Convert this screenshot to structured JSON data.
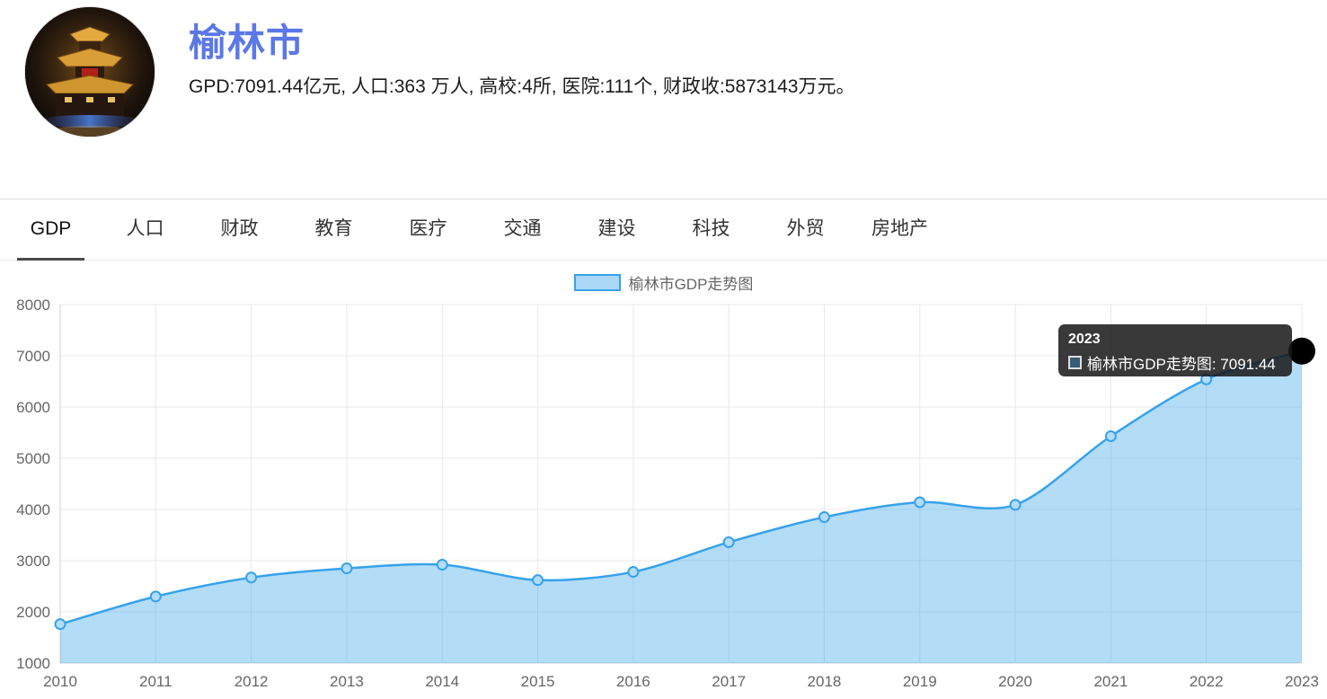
{
  "header": {
    "city_name": "榆林市",
    "summary": "GPD:7091.44亿元, 人口:363 万人, 高校:4所, 医院:111个, 财政收:5873143万元。",
    "avatar_icon": "city-gate-tower-night-photo"
  },
  "tabs": [
    {
      "label": "GDP",
      "active": true
    },
    {
      "label": "人口",
      "active": false
    },
    {
      "label": "财政",
      "active": false
    },
    {
      "label": "教育",
      "active": false
    },
    {
      "label": "医疗",
      "active": false
    },
    {
      "label": "交通",
      "active": false
    },
    {
      "label": "建设",
      "active": false
    },
    {
      "label": "科技",
      "active": false
    },
    {
      "label": "外贸",
      "active": false
    },
    {
      "label": "房地产",
      "active": false
    }
  ],
  "legend": {
    "label": "榆林市GDP走势图"
  },
  "tooltip": {
    "title": "2023",
    "body": "榆林市GDP走势图: 7091.44"
  },
  "colors": {
    "title_blue": "#5b78e8",
    "line_blue": "#36a2eb",
    "fill_blue": "rgba(54,162,235,0.38)",
    "point_fill": "#b3dcf9",
    "active_point": "#000000",
    "grid": "#e8e8e8",
    "axis": "#d0d0d0",
    "tick_text": "#666666"
  },
  "chart_data": {
    "type": "area",
    "title": "榆林市GDP走势图",
    "xlabel": "",
    "ylabel": "",
    "categories": [
      "2010",
      "2011",
      "2012",
      "2013",
      "2014",
      "2015",
      "2016",
      "2017",
      "2018",
      "2019",
      "2020",
      "2021",
      "2022",
      "2023"
    ],
    "series": [
      {
        "name": "榆林市GDP走势图",
        "values": [
          1760,
          2300,
          2670,
          2850,
          2920,
          2620,
          2780,
          3360,
          3850,
          4140,
          4090,
          5430,
          6540,
          7091.44
        ]
      }
    ],
    "ylim": [
      1000,
      8000
    ],
    "ytick_step": 1000,
    "grid": true,
    "legend_position": "top",
    "smooth": true,
    "highlighted_point": {
      "category": "2023",
      "value": 7091.44
    }
  }
}
